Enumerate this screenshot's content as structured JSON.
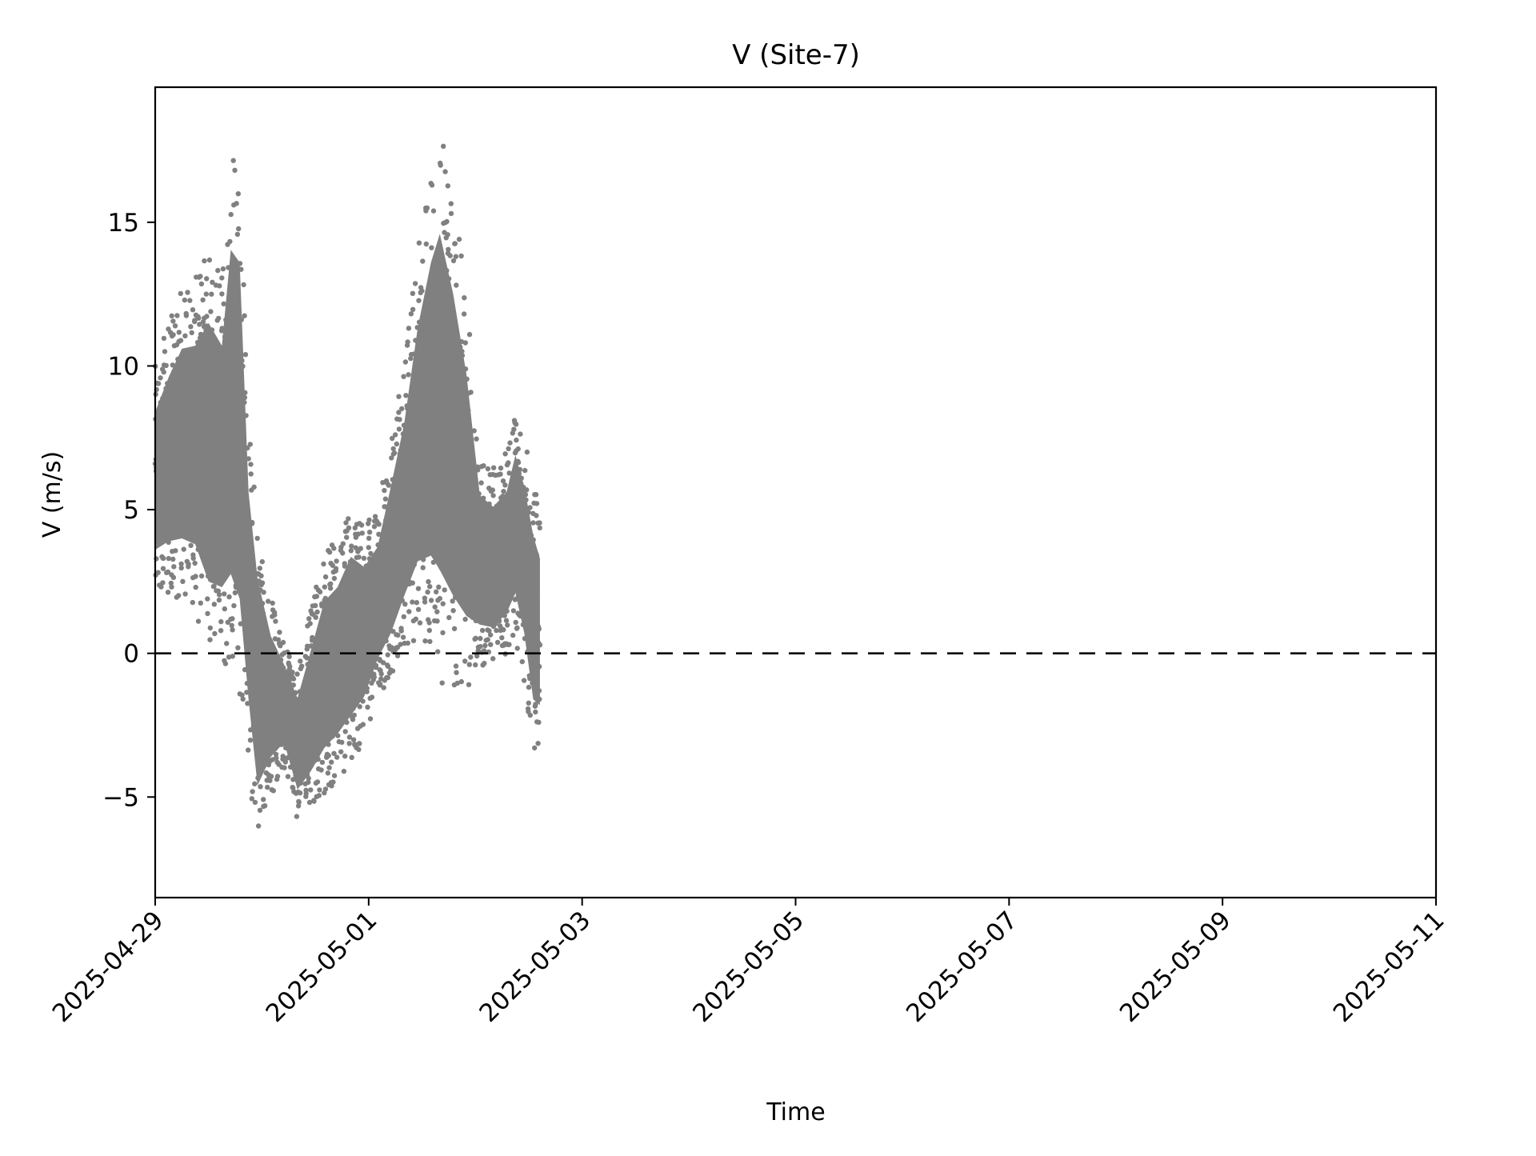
{
  "chart_data": {
    "type": "scatter",
    "title": "V (Site-7)",
    "xlabel": "Time",
    "ylabel": "V (m/s)",
    "x_axis_type": "date",
    "xlim": [
      "2025-04-29T00:00",
      "2025-05-11T00:00"
    ],
    "ylim": [
      -8.5,
      19.7
    ],
    "x_ticks": [
      "2025-04-29",
      "2025-05-01",
      "2025-05-03",
      "2025-05-05",
      "2025-05-07",
      "2025-05-09",
      "2025-05-11"
    ],
    "y_ticks": [
      -5,
      0,
      5,
      10,
      15
    ],
    "y_tick_labels": [
      "−5",
      "0",
      "5",
      "10",
      "15"
    ],
    "grid": false,
    "reference_line": {
      "y": 0,
      "style": "dashed",
      "color": "#000000"
    },
    "series": [
      {
        "color": "#808080",
        "marker": "dot",
        "envelope": [
          {
            "t": "2025-04-29T00:00",
            "low": 2.0,
            "high": 10.0
          },
          {
            "t": "2025-04-29T03:00",
            "low": 2.0,
            "high": 11.5
          },
          {
            "t": "2025-04-29T06:00",
            "low": 1.8,
            "high": 12.8
          },
          {
            "t": "2025-04-29T09:00",
            "low": 1.5,
            "high": 13.0
          },
          {
            "t": "2025-04-29T12:00",
            "low": -0.5,
            "high": 14.5
          },
          {
            "t": "2025-04-29T15:00",
            "low": -0.5,
            "high": 13.5
          },
          {
            "t": "2025-04-29T17:00",
            "low": -1.0,
            "high": 17.8
          },
          {
            "t": "2025-04-29T19:00",
            "low": -2.0,
            "high": 17.5
          },
          {
            "t": "2025-04-29T21:00",
            "low": -4.0,
            "high": 8.0
          },
          {
            "t": "2025-04-29T23:00",
            "low": -7.0,
            "high": 5.0
          },
          {
            "t": "2025-04-30T02:00",
            "low": -5.0,
            "high": 2.0
          },
          {
            "t": "2025-04-30T05:00",
            "low": -4.0,
            "high": 0.5
          },
          {
            "t": "2025-04-30T08:00",
            "low": -5.8,
            "high": -0.5
          },
          {
            "t": "2025-04-30T11:00",
            "low": -5.5,
            "high": 1.5
          },
          {
            "t": "2025-04-30T14:00",
            "low": -5.0,
            "high": 3.5
          },
          {
            "t": "2025-04-30T17:00",
            "low": -4.5,
            "high": 4.0
          },
          {
            "t": "2025-04-30T20:00",
            "low": -4.0,
            "high": 5.2
          },
          {
            "t": "2025-04-30T23:00",
            "low": -3.0,
            "high": 4.5
          },
          {
            "t": "2025-05-01T02:00",
            "low": -1.5,
            "high": 5.0
          },
          {
            "t": "2025-05-01T05:00",
            "low": -1.0,
            "high": 7.5
          },
          {
            "t": "2025-05-01T08:00",
            "low": 0.0,
            "high": 10.0
          },
          {
            "t": "2025-05-01T11:00",
            "low": 0.5,
            "high": 14.0
          },
          {
            "t": "2025-05-01T14:00",
            "low": 0.0,
            "high": 17.0
          },
          {
            "t": "2025-05-01T16:00",
            "low": -1.0,
            "high": 18.5
          },
          {
            "t": "2025-05-01T19:00",
            "low": -1.5,
            "high": 16.0
          },
          {
            "t": "2025-05-01T22:00",
            "low": -1.5,
            "high": 12.5
          },
          {
            "t": "2025-05-02T01:00",
            "low": -0.5,
            "high": 7.0
          },
          {
            "t": "2025-05-02T04:00",
            "low": -0.5,
            "high": 6.5
          },
          {
            "t": "2025-05-02T07:00",
            "low": 0.0,
            "high": 7.0
          },
          {
            "t": "2025-05-02T09:00",
            "low": 0.5,
            "high": 8.5
          },
          {
            "t": "2025-05-02T11:00",
            "low": -1.0,
            "high": 7.5
          },
          {
            "t": "2025-05-02T13:00",
            "low": -3.5,
            "high": 6.0
          },
          {
            "t": "2025-05-02T14:30",
            "low": -3.5,
            "high": 5.0
          }
        ]
      }
    ]
  }
}
